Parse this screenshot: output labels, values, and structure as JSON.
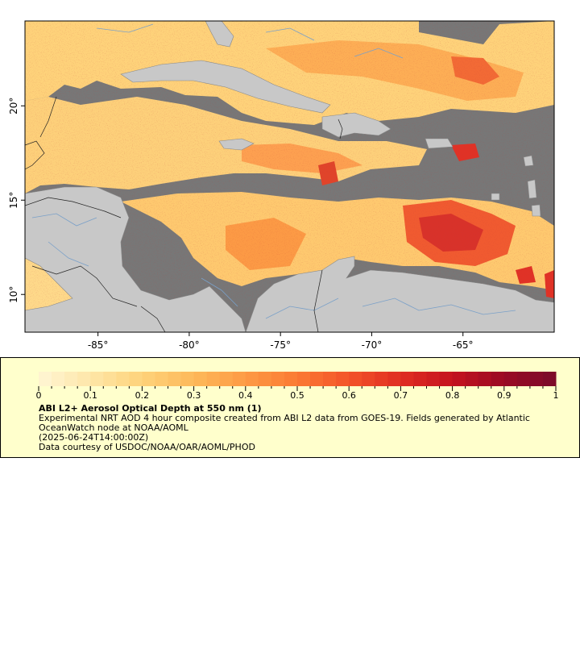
{
  "map": {
    "lon_min": -89,
    "lon_max": -60,
    "lat_min": 8,
    "lat_max": 24.5,
    "x_ticks": [
      -85,
      -80,
      -75,
      -70,
      -65
    ],
    "x_tick_labels": [
      "-85°",
      "-80°",
      "-75°",
      "-70°",
      "-65°"
    ],
    "y_ticks": [
      10,
      15,
      20
    ],
    "y_tick_labels": [
      "10°",
      "15°",
      "20°"
    ],
    "colors": {
      "no_data": "#777777",
      "land": "#c8c8c8",
      "rivers": "#7aa0c8",
      "borders": "#222222",
      "frame": "#000000"
    }
  },
  "colorbar": {
    "tick_labels": [
      "0",
      "0.1",
      "0.2",
      "0.3",
      "0.4",
      "0.5",
      "0.6",
      "0.7",
      "0.8",
      "0.9",
      "1"
    ],
    "stops": [
      "#fff6d5",
      "#fee6a8",
      "#fed27a",
      "#fdb95a",
      "#fd9a45",
      "#fb7a33",
      "#f3532a",
      "#e02d22",
      "#c4131f",
      "#9a0a24",
      "#7a0a2a"
    ]
  },
  "legend": {
    "title": "ABI L2+ Aerosol Optical Depth at 550 nm (1)",
    "line1": "Experimental NRT AOD 4 hour composite created from ABI L2 data from GOES-19. Fields generated by Atlantic OceanWatch node at NOAA/AOML",
    "line2": "(2025-06-24T14:00:00Z)",
    "line3": "Data courtesy of USDOC/NOAA/OAR/AOML/PHOD"
  }
}
